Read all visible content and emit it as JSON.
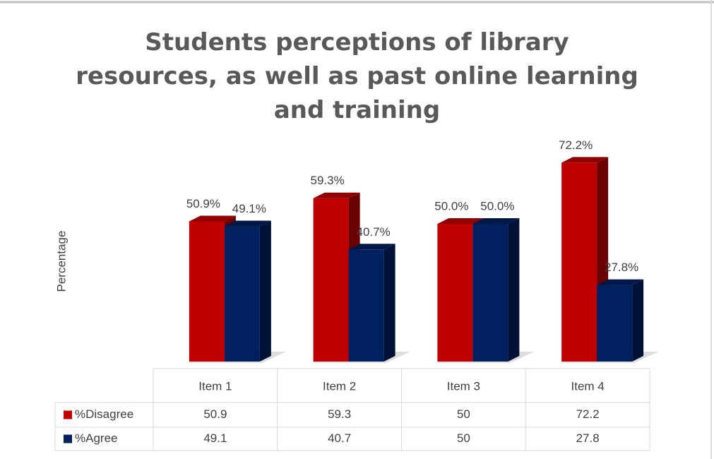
{
  "chart_data": {
    "type": "bar3d",
    "title": "Students perceptions of library resources, as well as past online learning and training",
    "y_label": "Percentage",
    "categories": [
      "Item 1",
      "Item 2",
      "Item 3",
      "Item 4"
    ],
    "series": [
      {
        "name": "%Disagree",
        "color": "#c00000",
        "values": [
          50.9,
          59.3,
          50,
          72.2
        ],
        "value_labels": [
          "50.9%",
          "59.3%",
          "50.0%",
          "72.2%"
        ]
      },
      {
        "name": "%Agree",
        "color": "#002060",
        "values": [
          49.1,
          40.7,
          50,
          27.8
        ],
        "value_labels": [
          "49.1%",
          "40.7%",
          "50.0%",
          "27.8%"
        ]
      }
    ],
    "ylim": [
      0,
      80
    ]
  }
}
